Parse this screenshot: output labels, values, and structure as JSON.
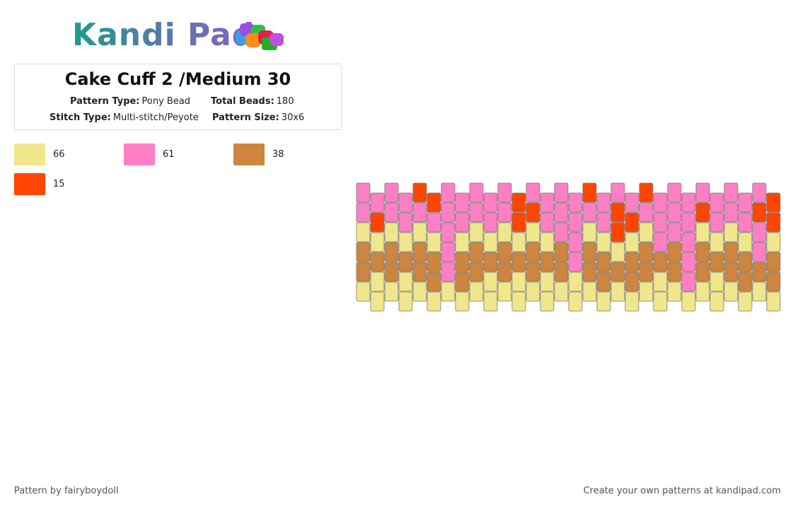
{
  "logo": "Kandi Pad",
  "header": {
    "title": "Cake Cuff 2 /Medium 30",
    "fields": [
      {
        "label": "Pattern Type:",
        "value": "Pony Bead"
      },
      {
        "label": "Total Beads:",
        "value": "180"
      },
      {
        "label": "Stitch Type:",
        "value": "Multi-stitch/Peyote"
      },
      {
        "label": "Pattern Size:",
        "value": "30x6"
      }
    ]
  },
  "legend": [
    {
      "color": "#f0e68c",
      "count": "66"
    },
    {
      "color": "#ff7fc4",
      "count": "61"
    },
    {
      "color": "#cd853f",
      "count": "38"
    },
    {
      "color": "#ff4500",
      "count": "15"
    }
  ],
  "footer": {
    "left": "Pattern by fairyboydoll",
    "right": "Create your own patterns at kandipad.com"
  }
}
